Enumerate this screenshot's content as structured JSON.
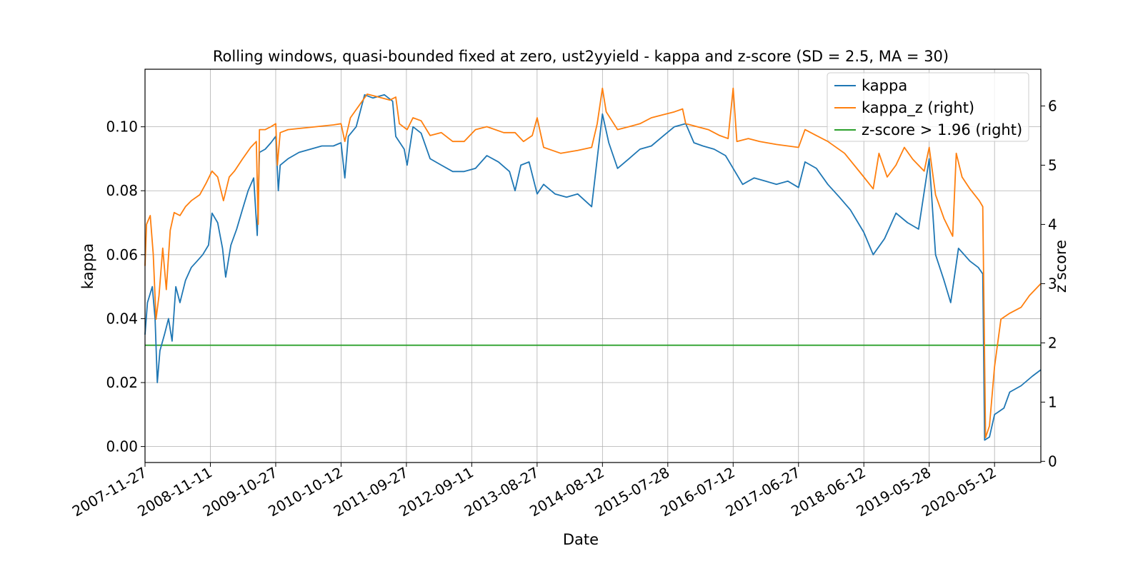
{
  "chart_data": {
    "type": "line",
    "title": "Rolling windows, quasi-bounded fixed at zero, ust2yyield - kappa and z-score (SD = 2.5, MA = 30)",
    "xlabel": "Date",
    "ylabel": "kappa",
    "ylabel_right": "z score",
    "x_ticks": [
      "2007-11-27",
      "2008-11-11",
      "2009-10-27",
      "2010-10-12",
      "2011-09-27",
      "2012-09-11",
      "2013-08-27",
      "2014-08-12",
      "2015-07-28",
      "2016-07-12",
      "2017-06-27",
      "2018-06-12",
      "2019-05-28",
      "2020-05-12"
    ],
    "xlim": [
      "2007-11-27",
      "2021-01-15"
    ],
    "ylim": [
      -0.005,
      0.118
    ],
    "ylim_right": [
      -0.02,
      6.62
    ],
    "y_ticks": [
      "0.00",
      "0.02",
      "0.04",
      "0.06",
      "0.08",
      "0.10"
    ],
    "y_ticks_right": [
      "0",
      "1",
      "2",
      "3",
      "4",
      "5",
      "6"
    ],
    "grid": true,
    "legend_position": "top-right",
    "legend": [
      "kappa",
      "kappa_z (right)",
      "z-score > 1.96 (right)"
    ],
    "colors": {
      "kappa": "#1f77b4",
      "kappa_z": "#ff7f0e",
      "threshold": "#2ca02c"
    },
    "series": [
      {
        "name": "kappa",
        "axis": "left",
        "points": [
          [
            "2007-11-27",
            0.035
          ],
          [
            "2007-12-10",
            0.045
          ],
          [
            "2008-01-05",
            0.05
          ],
          [
            "2008-01-20",
            0.04
          ],
          [
            "2008-02-01",
            0.02
          ],
          [
            "2008-02-15",
            0.03
          ],
          [
            "2008-03-10",
            0.035
          ],
          [
            "2008-04-01",
            0.04
          ],
          [
            "2008-04-20",
            0.033
          ],
          [
            "2008-05-10",
            0.05
          ],
          [
            "2008-06-01",
            0.045
          ],
          [
            "2008-07-01",
            0.052
          ],
          [
            "2008-08-01",
            0.056
          ],
          [
            "2008-09-01",
            0.058
          ],
          [
            "2008-10-01",
            0.06
          ],
          [
            "2008-11-01",
            0.063
          ],
          [
            "2008-11-20",
            0.073
          ],
          [
            "2008-12-20",
            0.07
          ],
          [
            "2009-01-15",
            0.062
          ],
          [
            "2009-02-01",
            0.053
          ],
          [
            "2009-03-01",
            0.063
          ],
          [
            "2009-04-01",
            0.068
          ],
          [
            "2009-05-01",
            0.074
          ],
          [
            "2009-06-01",
            0.08
          ],
          [
            "2009-07-01",
            0.084
          ],
          [
            "2009-07-20",
            0.066
          ],
          [
            "2009-08-01",
            0.092
          ],
          [
            "2009-09-01",
            0.093
          ],
          [
            "2009-10-01",
            0.095
          ],
          [
            "2009-10-27",
            0.097
          ],
          [
            "2009-11-10",
            0.08
          ],
          [
            "2009-11-20",
            0.088
          ],
          [
            "2010-01-01",
            0.09
          ],
          [
            "2010-03-01",
            0.092
          ],
          [
            "2010-05-01",
            0.093
          ],
          [
            "2010-07-01",
            0.094
          ],
          [
            "2010-09-01",
            0.094
          ],
          [
            "2010-10-12",
            0.095
          ],
          [
            "2010-11-01",
            0.084
          ],
          [
            "2010-11-20",
            0.097
          ],
          [
            "2011-01-01",
            0.1
          ],
          [
            "2011-02-15",
            0.11
          ],
          [
            "2011-04-01",
            0.109
          ],
          [
            "2011-06-01",
            0.11
          ],
          [
            "2011-07-15",
            0.108
          ],
          [
            "2011-08-01",
            0.097
          ],
          [
            "2011-09-15",
            0.093
          ],
          [
            "2011-10-01",
            0.088
          ],
          [
            "2011-11-01",
            0.1
          ],
          [
            "2011-12-15",
            0.098
          ],
          [
            "2012-02-01",
            0.09
          ],
          [
            "2012-04-01",
            0.088
          ],
          [
            "2012-06-01",
            0.086
          ],
          [
            "2012-08-01",
            0.086
          ],
          [
            "2012-10-01",
            0.087
          ],
          [
            "2012-12-01",
            0.091
          ],
          [
            "2013-02-01",
            0.089
          ],
          [
            "2013-04-01",
            0.086
          ],
          [
            "2013-05-01",
            0.08
          ],
          [
            "2013-06-01",
            0.088
          ],
          [
            "2013-07-15",
            0.089
          ],
          [
            "2013-08-27",
            0.079
          ],
          [
            "2013-10-01",
            0.082
          ],
          [
            "2013-12-01",
            0.079
          ],
          [
            "2014-02-01",
            0.078
          ],
          [
            "2014-04-01",
            0.079
          ],
          [
            "2014-06-15",
            0.075
          ],
          [
            "2014-07-15",
            0.09
          ],
          [
            "2014-08-12",
            0.104
          ],
          [
            "2014-09-15",
            0.095
          ],
          [
            "2014-11-01",
            0.087
          ],
          [
            "2015-01-01",
            0.09
          ],
          [
            "2015-03-01",
            0.093
          ],
          [
            "2015-05-01",
            0.094
          ],
          [
            "2015-07-01",
            0.097
          ],
          [
            "2015-09-01",
            0.1
          ],
          [
            "2015-11-01",
            0.101
          ],
          [
            "2015-12-15",
            0.095
          ],
          [
            "2016-02-01",
            0.094
          ],
          [
            "2016-04-01",
            0.093
          ],
          [
            "2016-06-01",
            0.091
          ],
          [
            "2016-07-12",
            0.087
          ],
          [
            "2016-09-01",
            0.082
          ],
          [
            "2016-11-01",
            0.084
          ],
          [
            "2017-01-01",
            0.083
          ],
          [
            "2017-03-01",
            0.082
          ],
          [
            "2017-05-01",
            0.083
          ],
          [
            "2017-06-27",
            0.081
          ],
          [
            "2017-08-01",
            0.089
          ],
          [
            "2017-10-01",
            0.087
          ],
          [
            "2017-12-01",
            0.082
          ],
          [
            "2018-02-01",
            0.078
          ],
          [
            "2018-04-01",
            0.074
          ],
          [
            "2018-06-12",
            0.067
          ],
          [
            "2018-08-01",
            0.06
          ],
          [
            "2018-10-01",
            0.065
          ],
          [
            "2018-12-01",
            0.073
          ],
          [
            "2019-02-01",
            0.07
          ],
          [
            "2019-04-01",
            0.068
          ],
          [
            "2019-05-28",
            0.09
          ],
          [
            "2019-07-01",
            0.06
          ],
          [
            "2019-08-15",
            0.052
          ],
          [
            "2019-09-20",
            0.045
          ],
          [
            "2019-11-01",
            0.062
          ],
          [
            "2020-01-01",
            0.058
          ],
          [
            "2020-02-15",
            0.056
          ],
          [
            "2020-03-10",
            0.054
          ],
          [
            "2020-03-20",
            0.002
          ],
          [
            "2020-04-15",
            0.003
          ],
          [
            "2020-05-12",
            0.01
          ],
          [
            "2020-07-01",
            0.012
          ],
          [
            "2020-08-01",
            0.017
          ],
          [
            "2020-10-01",
            0.019
          ],
          [
            "2020-12-01",
            0.022
          ],
          [
            "2021-01-15",
            0.024
          ]
        ]
      },
      {
        "name": "kappa_z (right)",
        "axis": "right",
        "points": [
          [
            "2007-11-27",
            3.3
          ],
          [
            "2007-12-05",
            4.0
          ],
          [
            "2007-12-25",
            4.15
          ],
          [
            "2008-01-10",
            3.5
          ],
          [
            "2008-01-25",
            2.4
          ],
          [
            "2008-02-10",
            2.8
          ],
          [
            "2008-03-01",
            3.6
          ],
          [
            "2008-03-20",
            2.9
          ],
          [
            "2008-04-10",
            3.9
          ],
          [
            "2008-05-01",
            4.2
          ],
          [
            "2008-06-01",
            4.15
          ],
          [
            "2008-07-01",
            4.3
          ],
          [
            "2008-08-01",
            4.4
          ],
          [
            "2008-09-15",
            4.5
          ],
          [
            "2008-10-20",
            4.7
          ],
          [
            "2008-11-20",
            4.9
          ],
          [
            "2008-12-20",
            4.8
          ],
          [
            "2009-01-20",
            4.4
          ],
          [
            "2009-02-20",
            4.8
          ],
          [
            "2009-03-20",
            4.9
          ],
          [
            "2009-05-01",
            5.1
          ],
          [
            "2009-06-15",
            5.3
          ],
          [
            "2009-07-15",
            5.4
          ],
          [
            "2009-07-25",
            4.0
          ],
          [
            "2009-08-01",
            5.6
          ],
          [
            "2009-09-01",
            5.6
          ],
          [
            "2009-10-01",
            5.65
          ],
          [
            "2009-10-27",
            5.7
          ],
          [
            "2009-11-05",
            5.0
          ],
          [
            "2009-11-20",
            5.55
          ],
          [
            "2010-01-01",
            5.6
          ],
          [
            "2010-03-01",
            5.62
          ],
          [
            "2010-06-01",
            5.65
          ],
          [
            "2010-09-01",
            5.68
          ],
          [
            "2010-10-12",
            5.7
          ],
          [
            "2010-11-01",
            5.4
          ],
          [
            "2010-12-01",
            5.8
          ],
          [
            "2011-01-15",
            6.0
          ],
          [
            "2011-03-01",
            6.2
          ],
          [
            "2011-05-01",
            6.15
          ],
          [
            "2011-07-01",
            6.1
          ],
          [
            "2011-08-01",
            6.15
          ],
          [
            "2011-08-20",
            5.7
          ],
          [
            "2011-10-01",
            5.6
          ],
          [
            "2011-11-01",
            5.8
          ],
          [
            "2011-12-15",
            5.75
          ],
          [
            "2012-02-01",
            5.5
          ],
          [
            "2012-04-01",
            5.55
          ],
          [
            "2012-06-01",
            5.4
          ],
          [
            "2012-08-01",
            5.4
          ],
          [
            "2012-10-01",
            5.6
          ],
          [
            "2012-12-01",
            5.65
          ],
          [
            "2013-03-01",
            5.55
          ],
          [
            "2013-05-01",
            5.55
          ],
          [
            "2013-06-15",
            5.4
          ],
          [
            "2013-08-01",
            5.5
          ],
          [
            "2013-08-27",
            5.8
          ],
          [
            "2013-10-01",
            5.3
          ],
          [
            "2014-01-01",
            5.2
          ],
          [
            "2014-04-01",
            5.25
          ],
          [
            "2014-06-15",
            5.3
          ],
          [
            "2014-07-15",
            5.7
          ],
          [
            "2014-08-12",
            6.3
          ],
          [
            "2014-09-01",
            5.9
          ],
          [
            "2014-11-01",
            5.6
          ],
          [
            "2015-01-01",
            5.65
          ],
          [
            "2015-03-01",
            5.7
          ],
          [
            "2015-05-01",
            5.8
          ],
          [
            "2015-07-01",
            5.85
          ],
          [
            "2015-09-01",
            5.9
          ],
          [
            "2015-10-15",
            5.95
          ],
          [
            "2015-11-01",
            5.7
          ],
          [
            "2016-01-01",
            5.65
          ],
          [
            "2016-03-01",
            5.6
          ],
          [
            "2016-05-01",
            5.5
          ],
          [
            "2016-06-15",
            5.45
          ],
          [
            "2016-07-12",
            6.3
          ],
          [
            "2016-08-01",
            5.4
          ],
          [
            "2016-10-01",
            5.45
          ],
          [
            "2016-12-01",
            5.4
          ],
          [
            "2017-03-01",
            5.35
          ],
          [
            "2017-06-27",
            5.3
          ],
          [
            "2017-08-01",
            5.6
          ],
          [
            "2017-10-01",
            5.5
          ],
          [
            "2017-12-01",
            5.4
          ],
          [
            "2018-03-01",
            5.2
          ],
          [
            "2018-06-12",
            4.8
          ],
          [
            "2018-08-01",
            4.6
          ],
          [
            "2018-09-01",
            5.2
          ],
          [
            "2018-10-15",
            4.8
          ],
          [
            "2018-12-01",
            5.0
          ],
          [
            "2019-01-15",
            5.3
          ],
          [
            "2019-03-01",
            5.1
          ],
          [
            "2019-05-01",
            4.9
          ],
          [
            "2019-05-28",
            5.3
          ],
          [
            "2019-07-01",
            4.5
          ],
          [
            "2019-08-15",
            4.1
          ],
          [
            "2019-10-01",
            3.8
          ],
          [
            "2019-10-20",
            5.2
          ],
          [
            "2019-11-20",
            4.8
          ],
          [
            "2020-01-01",
            4.6
          ],
          [
            "2020-02-20",
            4.4
          ],
          [
            "2020-03-10",
            4.3
          ],
          [
            "2020-03-25",
            0.4
          ],
          [
            "2020-04-15",
            0.6
          ],
          [
            "2020-05-12",
            1.6
          ],
          [
            "2020-06-15",
            2.4
          ],
          [
            "2020-08-01",
            2.5
          ],
          [
            "2020-10-01",
            2.6
          ],
          [
            "2020-11-15",
            2.8
          ],
          [
            "2021-01-15",
            3.0
          ]
        ]
      },
      {
        "name": "z-score > 1.96 (right)",
        "axis": "right",
        "points": [
          [
            "2007-11-27",
            1.96
          ],
          [
            "2021-01-15",
            1.96
          ]
        ]
      }
    ]
  }
}
